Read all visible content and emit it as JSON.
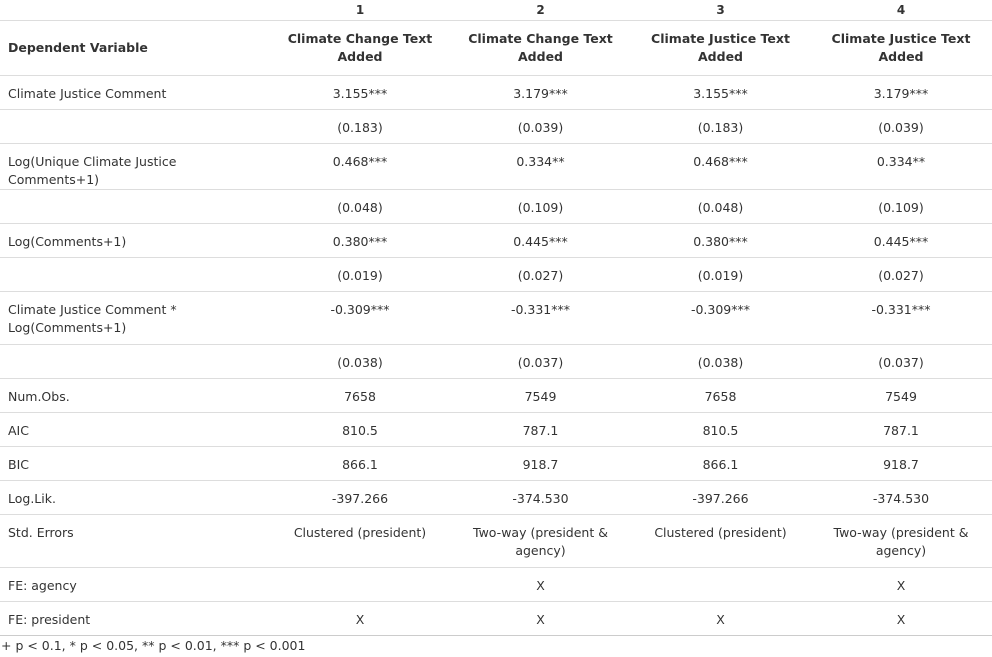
{
  "columns": {
    "numbers": [
      "1",
      "2",
      "3",
      "4"
    ],
    "dependent_label": "Dependent Variable",
    "dependent_values": [
      "Climate Change Text Added",
      "Climate Change Text Added",
      "Climate Justice Text Added",
      "Climate Justice Text Added"
    ]
  },
  "rows": [
    {
      "label": "Climate Justice Comment",
      "values": [
        "3.155***",
        "3.179***",
        "3.155***",
        "3.179***"
      ]
    },
    {
      "label": "",
      "values": [
        "(0.183)",
        "(0.039)",
        "(0.183)",
        "(0.039)"
      ]
    },
    {
      "label": "Log(Unique Climate Justice Comments+1)",
      "values": [
        "0.468***",
        "0.334**",
        "0.468***",
        "0.334**"
      ]
    },
    {
      "label": "",
      "values": [
        "(0.048)",
        "(0.109)",
        "(0.048)",
        "(0.109)"
      ]
    },
    {
      "label": "Log(Comments+1)",
      "values": [
        "0.380***",
        "0.445***",
        "0.380***",
        "0.445***"
      ]
    },
    {
      "label": "",
      "values": [
        "(0.019)",
        "(0.027)",
        "(0.019)",
        "(0.027)"
      ]
    },
    {
      "label": "Climate Justice Comment * Log(Comments+1)",
      "values": [
        "-0.309***",
        "-0.331***",
        "-0.309***",
        "-0.331***"
      ]
    },
    {
      "label": "",
      "values": [
        "(0.038)",
        "(0.037)",
        "(0.038)",
        "(0.037)"
      ]
    },
    {
      "label": "Num.Obs.",
      "values": [
        "7658",
        "7549",
        "7658",
        "7549"
      ]
    },
    {
      "label": "AIC",
      "values": [
        "810.5",
        "787.1",
        "810.5",
        "787.1"
      ]
    },
    {
      "label": "BIC",
      "values": [
        "866.1",
        "918.7",
        "866.1",
        "918.7"
      ]
    },
    {
      "label": "Log.Lik.",
      "values": [
        "-397.266",
        "-374.530",
        "-397.266",
        "-374.530"
      ]
    },
    {
      "label": "Std. Errors",
      "values": [
        "Clustered (president)",
        "Two-way (president & agency)",
        "Clustered (president)",
        "Two-way (president & agency)"
      ]
    },
    {
      "label": "FE: agency",
      "values": [
        "",
        "X",
        "",
        "X"
      ]
    },
    {
      "label": "FE: president",
      "values": [
        "X",
        "X",
        "X",
        "X"
      ]
    }
  ],
  "footnote": "+ p < 0.1, * p < 0.05, ** p < 0.01, *** p < 0.001"
}
